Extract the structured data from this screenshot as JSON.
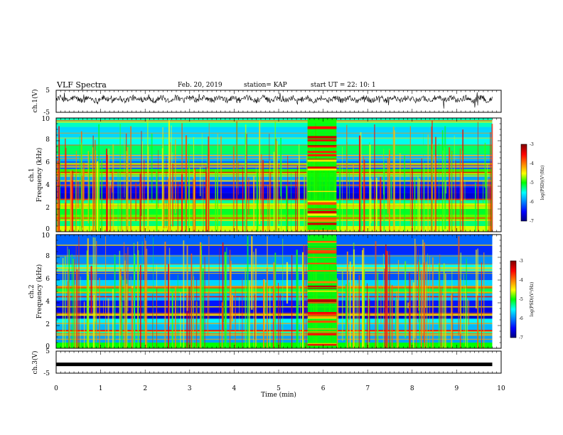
{
  "header": {
    "title": "VLF Spectra",
    "date": "Feb. 20, 2019",
    "station": "station= KAP",
    "start": "start  UT =   22: 10: 1"
  },
  "chart_data": [
    {
      "type": "line",
      "name": "ch1-waveform",
      "ylabel": "ch.1(V)",
      "ylim": [
        -5,
        5
      ],
      "yticks": [
        "5",
        "-5"
      ],
      "xlim": [
        0,
        10
      ],
      "note": "dense noisy waveform around ~1 V"
    },
    {
      "type": "heatmap",
      "name": "ch1-spectrogram",
      "ylabel_line1": "ch.1",
      "ylabel_line2": "Frequency (kHz)",
      "ylim": [
        0,
        10
      ],
      "yticks": [
        "0",
        "2",
        "4",
        "6",
        "8",
        "10"
      ],
      "xlim": [
        0,
        10
      ],
      "data_extent_x": [
        0,
        9.8
      ],
      "burst_interval": [
        5.65,
        6.3
      ],
      "colorbar": {
        "label": "log(PSD)(V²/Hz)",
        "range": [
          -7,
          -3
        ],
        "ticks": [
          "-3",
          "-4",
          "-5",
          "-6",
          "-7"
        ]
      }
    },
    {
      "type": "heatmap",
      "name": "ch2-spectrogram",
      "ylabel_line1": "ch.2",
      "ylabel_line2": "Frequency (kHz)",
      "ylim": [
        0,
        10
      ],
      "yticks": [
        "0",
        "2",
        "4",
        "6",
        "8",
        "10"
      ],
      "xlim": [
        0,
        10
      ],
      "data_extent_x": [
        0,
        9.8
      ],
      "burst_interval": [
        5.65,
        6.3
      ],
      "colorbar": {
        "label": "log(PSD)(V²/Hz)",
        "range": [
          -7,
          -3
        ],
        "ticks": [
          "-3",
          "-4",
          "-5",
          "-6",
          "-7"
        ]
      }
    },
    {
      "type": "line",
      "name": "ch3-waveform",
      "ylabel": "ch.3(V)",
      "ylim": [
        -5,
        5
      ],
      "yticks": [
        "5",
        "-5"
      ],
      "xlim": [
        0,
        10
      ],
      "x": [
        0,
        9.8
      ],
      "y": [
        -1,
        -1
      ]
    }
  ],
  "xaxis": {
    "label": "Time (min)",
    "ticks": [
      "0",
      "1",
      "2",
      "3",
      "4",
      "5",
      "6",
      "7",
      "8",
      "9",
      "10"
    ]
  },
  "colors": {
    "axis": "#000000",
    "colormap": [
      "#00007f",
      "#0000ff",
      "#00ffff",
      "#00ff00",
      "#ffff00",
      "#ff0000",
      "#7f0000"
    ]
  }
}
